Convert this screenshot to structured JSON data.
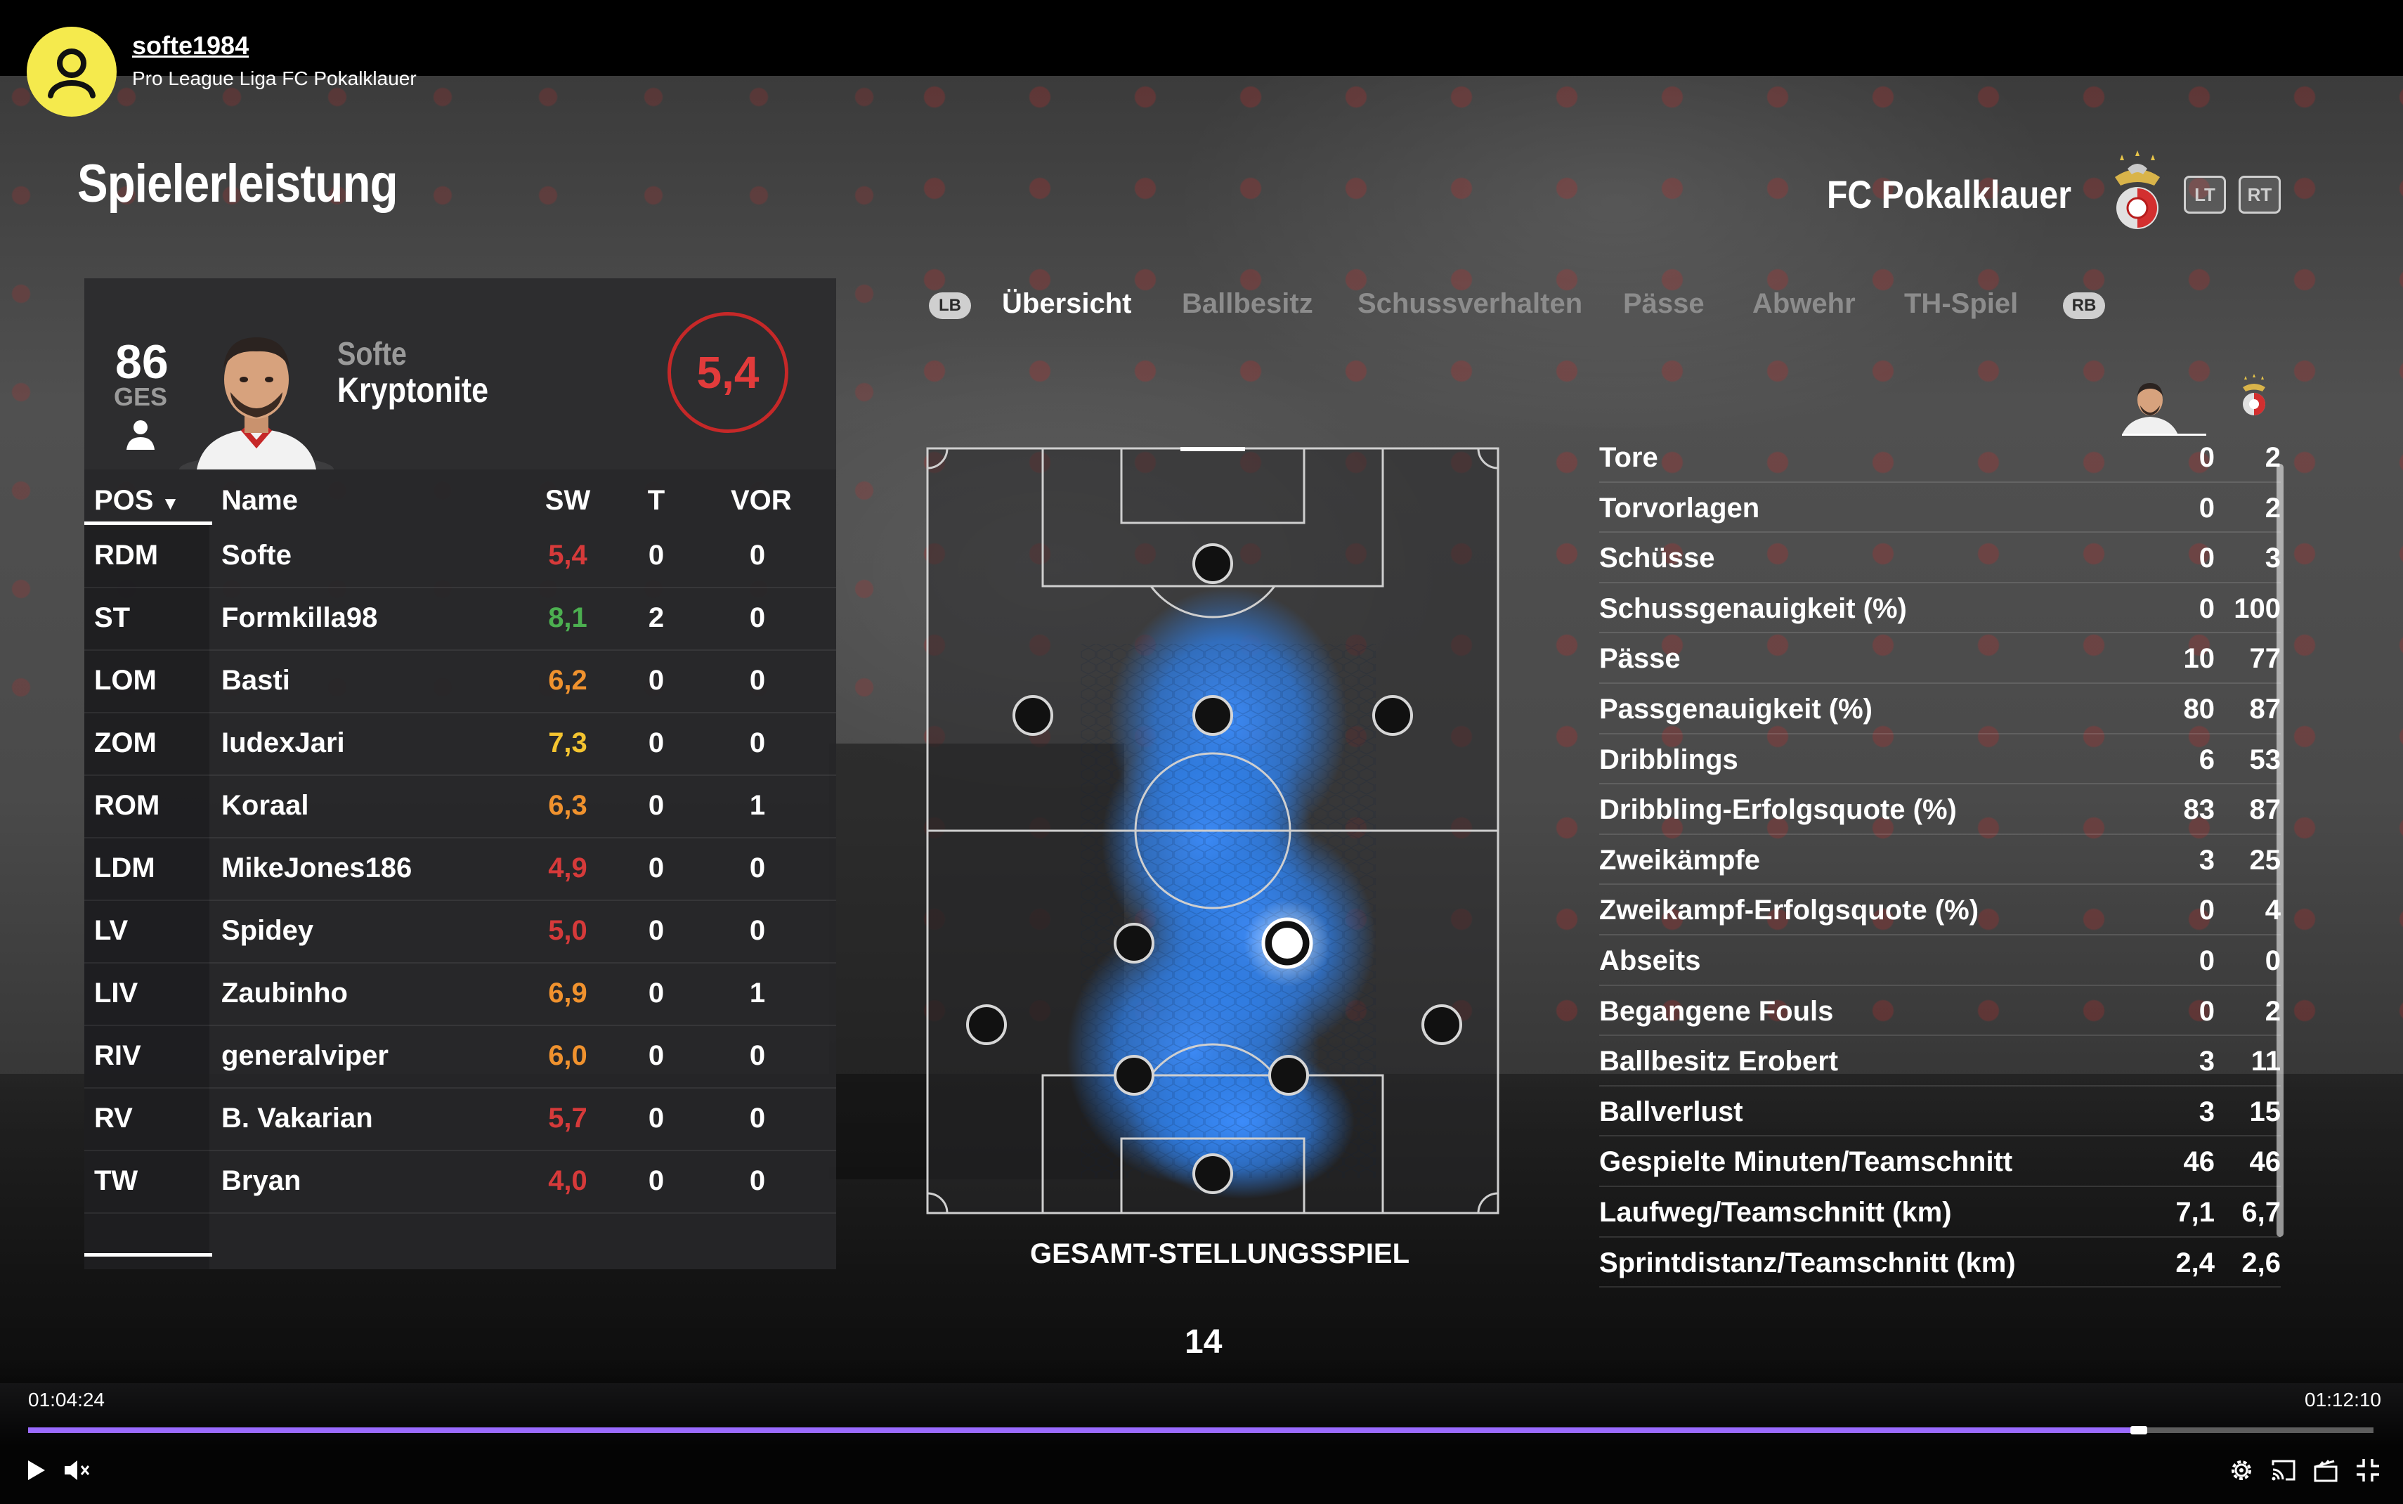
{
  "channel": {
    "name": "softe1984",
    "subtitle": "Pro League Liga FC Pokalklauer"
  },
  "screen": {
    "title": "Spielerleistung",
    "club_name": "FC Pokalklauer",
    "lt_label": "LT",
    "rt_label": "RT"
  },
  "player_card": {
    "ges_value": "86",
    "ges_label": "GES",
    "first_name": "Softe",
    "last_name": "Kryptonite",
    "rating": "5,4"
  },
  "lineup": {
    "headers": {
      "pos": "POS",
      "name": "Name",
      "sw": "SW",
      "t": "T",
      "vor": "VOR"
    },
    "rows": [
      {
        "pos": "RDM",
        "name": "Softe",
        "sw": "5,4",
        "t": "0",
        "vor": "0",
        "color": "#d63a3a"
      },
      {
        "pos": "ST",
        "name": "Formkilla98",
        "sw": "8,1",
        "t": "2",
        "vor": "0",
        "color": "#4caf50"
      },
      {
        "pos": "LOM",
        "name": "Basti",
        "sw": "6,2",
        "t": "0",
        "vor": "0",
        "color": "#f0922e"
      },
      {
        "pos": "ZOM",
        "name": "IudexJari",
        "sw": "7,3",
        "t": "0",
        "vor": "0",
        "color": "#f4c430"
      },
      {
        "pos": "ROM",
        "name": "Koraal",
        "sw": "6,3",
        "t": "0",
        "vor": "1",
        "color": "#f0922e"
      },
      {
        "pos": "LDM",
        "name": "MikeJones186",
        "sw": "4,9",
        "t": "0",
        "vor": "0",
        "color": "#d63a3a"
      },
      {
        "pos": "LV",
        "name": "Spidey",
        "sw": "5,0",
        "t": "0",
        "vor": "0",
        "color": "#d63a3a"
      },
      {
        "pos": "LIV",
        "name": "Zaubinho",
        "sw": "6,9",
        "t": "0",
        "vor": "1",
        "color": "#f0922e"
      },
      {
        "pos": "RIV",
        "name": "generalviper",
        "sw": "6,0",
        "t": "0",
        "vor": "0",
        "color": "#f0922e"
      },
      {
        "pos": "RV",
        "name": "B. Vakarian",
        "sw": "5,7",
        "t": "0",
        "vor": "0",
        "color": "#d63a3a"
      },
      {
        "pos": "TW",
        "name": "Bryan",
        "sw": "4,0",
        "t": "0",
        "vor": "0",
        "color": "#d63a3a"
      }
    ]
  },
  "tabs": {
    "lb": "LB",
    "rb": "RB",
    "items": [
      "Übersicht",
      "Ballbesitz",
      "Schussverhalten",
      "Pässe",
      "Abwehr",
      "TH-Spiel"
    ],
    "active": "Übersicht"
  },
  "pitch": {
    "caption": "GESAMT-STELLUNGSSPIEL",
    "page_number": "14"
  },
  "stats": [
    {
      "label": "Tore",
      "player": "0",
      "team": "2"
    },
    {
      "label": "Torvorlagen",
      "player": "0",
      "team": "2"
    },
    {
      "label": "Schüsse",
      "player": "0",
      "team": "3"
    },
    {
      "label": "Schussgenauigkeit (%)",
      "player": "0",
      "team": "100"
    },
    {
      "label": "Pässe",
      "player": "10",
      "team": "77"
    },
    {
      "label": "Passgenauigkeit (%)",
      "player": "80",
      "team": "87"
    },
    {
      "label": "Dribblings",
      "player": "6",
      "team": "53"
    },
    {
      "label": "Dribbling-Erfolgsquote (%)",
      "player": "83",
      "team": "87"
    },
    {
      "label": "Zweikämpfe",
      "player": "3",
      "team": "25"
    },
    {
      "label": "Zweikampf-Erfolgsquote (%)",
      "player": "0",
      "team": "4"
    },
    {
      "label": "Abseits",
      "player": "0",
      "team": "0"
    },
    {
      "label": "Begangene Fouls",
      "player": "0",
      "team": "2"
    },
    {
      "label": "Ballbesitz Erobert",
      "player": "3",
      "team": "11"
    },
    {
      "label": "Ballverlust",
      "player": "3",
      "team": "15"
    },
    {
      "label": "Gespielte Minuten/Teamschnitt",
      "player": "46",
      "team": "46"
    },
    {
      "label": "Laufweg/Teamschnitt (km)",
      "player": "7,1",
      "team": "6,7"
    },
    {
      "label": "Sprintdistanz/Teamschnitt (km)",
      "player": "2,4",
      "team": "2,6"
    }
  ],
  "video": {
    "current_time": "01:04:24",
    "total_time": "01:12:10",
    "progress": 0.9,
    "accent": "#9b6bff"
  },
  "icons": {
    "avatar": "user-icon",
    "play": "play-icon",
    "mute": "volume-muted-icon",
    "settings": "gear-icon",
    "cast": "cast-icon",
    "miniplayer": "clapperboard-icon",
    "fullscreen": "exit-fullscreen-icon"
  }
}
